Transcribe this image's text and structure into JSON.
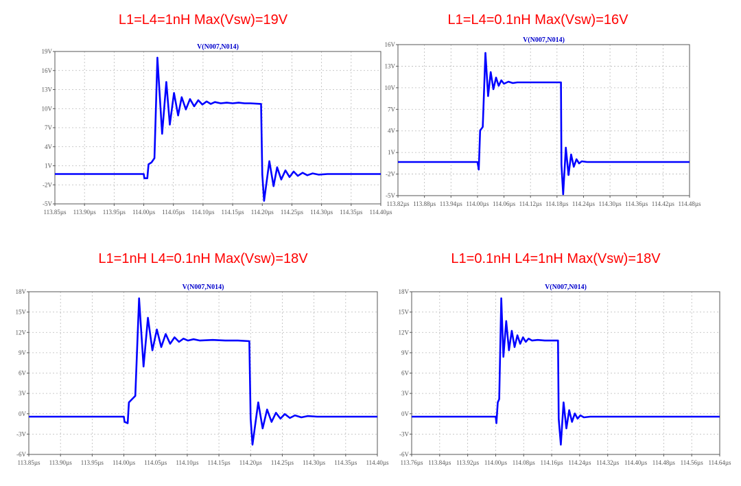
{
  "colors": {
    "heading": "#ff0000",
    "trace": "#0000ff",
    "grid": "#b8b8b8",
    "axis": "#555555"
  },
  "chart_data": [
    {
      "type": "line",
      "title": "L1=L4=1nH  Max(Vsw)=19V",
      "signal_label": "V(N007,N014)",
      "xlim": [
        113.85,
        114.4
      ],
      "ylim": [
        -5,
        20
      ],
      "x_ticks": [
        "113.85µs",
        "113.90µs",
        "113.95µs",
        "114.00µs",
        "114.05µs",
        "114.10µs",
        "114.15µs",
        "114.20µs",
        "114.25µs",
        "114.30µs",
        "114.35µs",
        "114.40µs"
      ],
      "y_ticks": [
        "19V",
        "16V",
        "13V",
        "10V",
        "7V",
        "4V",
        "1V",
        "-2V",
        "-5V"
      ],
      "grid": true,
      "series": [
        {
          "x": [
            113.85,
            114.0,
            114.001,
            114.006,
            114.008,
            114.013,
            114.018,
            114.023,
            114.031,
            114.038,
            114.044,
            114.051,
            114.058,
            114.064,
            114.071,
            114.078,
            114.085,
            114.092,
            114.099,
            114.106,
            114.113,
            114.12,
            114.13,
            114.14,
            114.15,
            114.16,
            114.17,
            114.18,
            114.198,
            114.2,
            114.203,
            114.212,
            114.219,
            114.225,
            114.232,
            114.239,
            114.246,
            114.253,
            114.26,
            114.268,
            114.276,
            114.285,
            114.295,
            114.31,
            114.33,
            114.4
          ],
          "y": [
            -0.1,
            -0.1,
            -0.8,
            -0.8,
            1.5,
            1.8,
            2.5,
            19.0,
            6.5,
            15.0,
            8.0,
            13.2,
            9.5,
            12.5,
            10.5,
            12.2,
            11.0,
            12.0,
            11.3,
            11.8,
            11.4,
            11.7,
            11.5,
            11.6,
            11.5,
            11.6,
            11.5,
            11.5,
            11.4,
            -0.2,
            -4.5,
            2.0,
            -2.1,
            1.0,
            -1.0,
            0.5,
            -0.6,
            0.3,
            -0.4,
            0.1,
            -0.3,
            0.0,
            -0.2,
            -0.1,
            -0.1,
            -0.1
          ]
        }
      ]
    },
    {
      "type": "line",
      "title": "L1=L4=0.1nH  Max(Vsw)=16V",
      "signal_label": "V(N007,N014)",
      "xlim": [
        113.82,
        114.48
      ],
      "ylim": [
        -5,
        17
      ],
      "x_ticks": [
        "113.82µs",
        "113.88µs",
        "113.94µs",
        "114.00µs",
        "114.06µs",
        "114.12µs",
        "114.18µs",
        "114.24µs",
        "114.30µs",
        "114.36µs",
        "114.42µs",
        "114.48µs"
      ],
      "y_ticks": [
        "16V",
        "13V",
        "10V",
        "7V",
        "4V",
        "1V",
        "-2V",
        "-5V"
      ],
      "grid": true,
      "series": [
        {
          "x": [
            113.82,
            114.0,
            114.003,
            114.006,
            114.012,
            114.018,
            114.024,
            114.03,
            114.036,
            114.042,
            114.048,
            114.054,
            114.06,
            114.07,
            114.08,
            114.09,
            114.1,
            114.12,
            114.14,
            114.16,
            114.18,
            114.189,
            114.19,
            114.194,
            114.2,
            114.206,
            114.212,
            114.218,
            114.224,
            114.23,
            114.236,
            114.248,
            114.48
          ],
          "y": [
            -0.1,
            -0.1,
            -1.2,
            4.5,
            5.0,
            15.8,
            9.5,
            13.0,
            10.5,
            12.2,
            11.0,
            11.8,
            11.3,
            11.6,
            11.4,
            11.5,
            11.5,
            11.5,
            11.5,
            11.5,
            11.5,
            11.5,
            -0.5,
            -4.8,
            2.0,
            -2.0,
            1.0,
            -0.8,
            0.3,
            -0.3,
            0.0,
            -0.1,
            -0.1
          ]
        }
      ]
    },
    {
      "type": "line",
      "title": "L1=1nH L4=0.1nH  Max(Vsw)=18V",
      "signal_label": "V(N007,N014)",
      "xlim": [
        113.85,
        114.4
      ],
      "ylim": [
        -6,
        19
      ],
      "x_ticks": [
        "113.85µs",
        "113.90µs",
        "113.95µs",
        "114.00µs",
        "114.05µs",
        "114.10µs",
        "114.15µs",
        "114.20µs",
        "114.25µs",
        "114.30µs",
        "114.35µs",
        "114.40µs"
      ],
      "y_ticks": [
        "18V",
        "15V",
        "12V",
        "9V",
        "6V",
        "3V",
        "0V",
        "-3V",
        "-6V"
      ],
      "grid": true,
      "series": [
        {
          "x": [
            113.85,
            114.0,
            114.001,
            114.006,
            114.008,
            114.013,
            114.018,
            114.024,
            114.031,
            114.038,
            114.045,
            114.052,
            114.059,
            114.066,
            114.073,
            114.08,
            114.087,
            114.094,
            114.101,
            114.11,
            114.12,
            114.14,
            114.16,
            114.18,
            114.198,
            114.2,
            114.203,
            114.212,
            114.219,
            114.226,
            114.233,
            114.24,
            114.247,
            114.254,
            114.262,
            114.27,
            114.28,
            114.29,
            114.305,
            114.4
          ],
          "y": [
            -0.2,
            -0.2,
            -1.0,
            -1.2,
            2.0,
            2.5,
            3.0,
            18.0,
            7.5,
            15.0,
            10.0,
            13.2,
            10.5,
            12.5,
            11.0,
            12.0,
            11.3,
            11.8,
            11.5,
            11.7,
            11.5,
            11.6,
            11.5,
            11.5,
            11.4,
            -0.5,
            -4.5,
            2.0,
            -2.0,
            0.9,
            -1.0,
            0.4,
            -0.5,
            0.2,
            -0.4,
            0.0,
            -0.3,
            -0.1,
            -0.2,
            -0.2
          ]
        }
      ]
    },
    {
      "type": "line",
      "title": "L1=0.1nH L4=1nH Max(Vsw)=18V",
      "signal_label": "V(N007,N014)",
      "xlim": [
        113.76,
        114.64
      ],
      "ylim": [
        -6,
        19
      ],
      "x_ticks": [
        "113.76µs",
        "113.84µs",
        "113.92µs",
        "114.00µs",
        "114.08µs",
        "114.16µs",
        "114.24µs",
        "114.32µs",
        "114.40µs",
        "114.48µs",
        "114.56µs",
        "114.64µs"
      ],
      "y_ticks": [
        "18V",
        "15V",
        "12V",
        "9V",
        "6V",
        "3V",
        "0V",
        "-3V",
        "-6V"
      ],
      "grid": true,
      "series": [
        {
          "x": [
            113.76,
            114.0,
            114.002,
            114.006,
            114.01,
            114.016,
            114.022,
            114.03,
            114.038,
            114.046,
            114.054,
            114.062,
            114.07,
            114.078,
            114.086,
            114.094,
            114.104,
            114.12,
            114.14,
            114.16,
            114.178,
            114.18,
            114.186,
            114.194,
            114.202,
            114.21,
            114.218,
            114.226,
            114.234,
            114.242,
            114.252,
            114.27,
            114.64
          ],
          "y": [
            -0.2,
            -0.2,
            -1.2,
            2.0,
            2.5,
            18.0,
            9.0,
            14.5,
            10.0,
            13.0,
            10.5,
            12.3,
            11.0,
            12.0,
            11.3,
            11.8,
            11.5,
            11.6,
            11.5,
            11.5,
            11.5,
            -0.5,
            -4.5,
            2.0,
            -2.0,
            0.8,
            -1.0,
            0.3,
            -0.5,
            0.0,
            -0.3,
            -0.2,
            -0.2
          ]
        }
      ]
    }
  ]
}
